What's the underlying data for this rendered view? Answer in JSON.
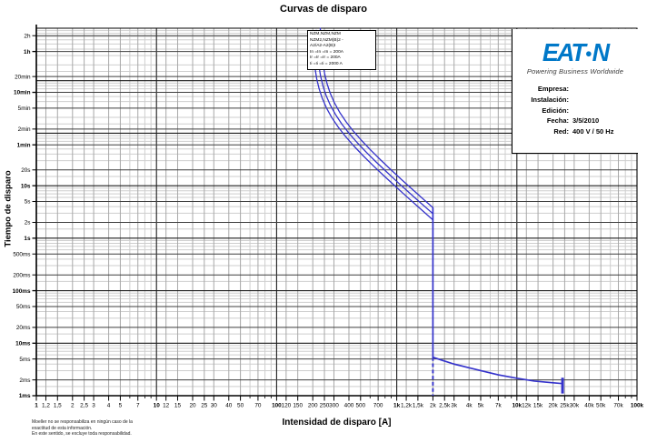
{
  "title": "Curvas de disparo",
  "branding": {
    "logo_left": "EAT",
    "logo_dot": "●",
    "logo_right": "N",
    "tagline": "Powering Business Worldwide",
    "logo_color": "#0078c8"
  },
  "legend_box": {
    "lines": [
      "NZM,NZM,NZM",
      "NZM2,NZM(B)2 -",
      "A2/A2-A2(B)I",
      "In =In =In = 200A",
      "Ir =Ir =Ir = 200A",
      "Ii =Ii =Ii = 2000 A"
    ]
  },
  "info_panel": {
    "rows": [
      {
        "label": "Empresa:",
        "value": ""
      },
      {
        "label": "Instalación:",
        "value": ""
      },
      {
        "label": "Edición:",
        "value": ""
      },
      {
        "label": "Fecha:",
        "value": "3/5/2010"
      },
      {
        "label": "Red:",
        "value": "400 V / 50 Hz"
      }
    ]
  },
  "footer": {
    "disclaimer_lines": [
      "Moeller no se responsabiliza en ningún caso de la",
      "exactitud de esta información.",
      "En este sentido, se excluye toda responsabilidad."
    ]
  },
  "axes": {
    "x_label": "Intensidad de disparo [A]",
    "y_label": "Tiempo de disparo",
    "x_minor_mantissas": [
      1,
      1.2,
      1.5,
      2,
      2.5,
      3,
      4,
      5,
      6,
      7,
      8,
      9
    ],
    "y_minor_mantissas": [
      1,
      1.5,
      2,
      3,
      4,
      5,
      6,
      7,
      8,
      9
    ],
    "x_ticks": [
      {
        "v": 1,
        "l": "1",
        "b": true
      },
      {
        "v": 1.2,
        "l": "1,2",
        "b": false
      },
      {
        "v": 1.5,
        "l": "1,5",
        "b": false
      },
      {
        "v": 2,
        "l": "2",
        "b": false
      },
      {
        "v": 2.5,
        "l": "2,5",
        "b": false
      },
      {
        "v": 3,
        "l": "3",
        "b": false
      },
      {
        "v": 4,
        "l": "4",
        "b": false
      },
      {
        "v": 5,
        "l": "5",
        "b": false
      },
      {
        "v": 7,
        "l": "7",
        "b": false
      },
      {
        "v": 10,
        "l": "10",
        "b": true
      },
      {
        "v": 12,
        "l": "12",
        "b": false
      },
      {
        "v": 15,
        "l": "15",
        "b": false
      },
      {
        "v": 20,
        "l": "20",
        "b": false
      },
      {
        "v": 25,
        "l": "25",
        "b": false
      },
      {
        "v": 30,
        "l": "30",
        "b": false
      },
      {
        "v": 40,
        "l": "40",
        "b": false
      },
      {
        "v": 50,
        "l": "50",
        "b": false
      },
      {
        "v": 70,
        "l": "70",
        "b": false
      },
      {
        "v": 100,
        "l": "100",
        "b": true
      },
      {
        "v": 120,
        "l": "120",
        "b": false
      },
      {
        "v": 150,
        "l": "150",
        "b": false
      },
      {
        "v": 200,
        "l": "200",
        "b": false
      },
      {
        "v": 250,
        "l": "250",
        "b": false
      },
      {
        "v": 300,
        "l": "300",
        "b": false
      },
      {
        "v": 400,
        "l": "400",
        "b": false
      },
      {
        "v": 500,
        "l": "500",
        "b": false
      },
      {
        "v": 700,
        "l": "700",
        "b": false
      },
      {
        "v": 1000,
        "l": "1k",
        "b": true
      },
      {
        "v": 1200,
        "l": "1,2k",
        "b": false
      },
      {
        "v": 1500,
        "l": "1,5k",
        "b": false
      },
      {
        "v": 2000,
        "l": "2k",
        "b": false
      },
      {
        "v": 2500,
        "l": "2,5k",
        "b": false
      },
      {
        "v": 3000,
        "l": "3k",
        "b": false
      },
      {
        "v": 4000,
        "l": "4k",
        "b": false
      },
      {
        "v": 5000,
        "l": "5k",
        "b": false
      },
      {
        "v": 7000,
        "l": "7k",
        "b": false
      },
      {
        "v": 10000,
        "l": "10k",
        "b": true
      },
      {
        "v": 12000,
        "l": "12k",
        "b": false
      },
      {
        "v": 15000,
        "l": "15k",
        "b": false
      },
      {
        "v": 20000,
        "l": "20k",
        "b": false
      },
      {
        "v": 25000,
        "l": "25k",
        "b": false
      },
      {
        "v": 30000,
        "l": "30k",
        "b": false
      },
      {
        "v": 40000,
        "l": "40k",
        "b": false
      },
      {
        "v": 50000,
        "l": "50k",
        "b": false
      },
      {
        "v": 70000,
        "l": "70k",
        "b": false
      },
      {
        "v": 100000,
        "l": "100k",
        "b": true
      }
    ],
    "y_ticks": [
      {
        "v": 7200,
        "l": "2h",
        "b": false
      },
      {
        "v": 3600,
        "l": "1h",
        "b": true
      },
      {
        "v": 1200,
        "l": "20min",
        "b": false
      },
      {
        "v": 600,
        "l": "10min",
        "b": true
      },
      {
        "v": 300,
        "l": "5min",
        "b": false
      },
      {
        "v": 120,
        "l": "2min",
        "b": false
      },
      {
        "v": 60,
        "l": "1min",
        "b": true
      },
      {
        "v": 20,
        "l": "20s",
        "b": false
      },
      {
        "v": 10,
        "l": "10s",
        "b": true
      },
      {
        "v": 5,
        "l": "5s",
        "b": false
      },
      {
        "v": 2,
        "l": "2s",
        "b": false
      },
      {
        "v": 1,
        "l": "1s",
        "b": true
      },
      {
        "v": 0.5,
        "l": "500ms",
        "b": false
      },
      {
        "v": 0.2,
        "l": "200ms",
        "b": false
      },
      {
        "v": 0.1,
        "l": "100ms",
        "b": true
      },
      {
        "v": 0.05,
        "l": "50ms",
        "b": false
      },
      {
        "v": 0.02,
        "l": "20ms",
        "b": false
      },
      {
        "v": 0.01,
        "l": "10ms",
        "b": true
      },
      {
        "v": 0.005,
        "l": "5ms",
        "b": false
      },
      {
        "v": 0.002,
        "l": "2ms",
        "b": false
      },
      {
        "v": 0.001,
        "l": "1ms",
        "b": true
      }
    ]
  },
  "chart_data": {
    "type": "line",
    "title": "Curvas de disparo",
    "xlabel": "Intensidad de disparo [A]",
    "ylabel": "Tiempo de disparo",
    "x_scale": "log",
    "y_scale": "log",
    "xlim": [
      1,
      100000
    ],
    "ylim_seconds": [
      0.001,
      10000
    ],
    "grid": "on",
    "curve_color": "#3533cb",
    "device_settings": {
      "In_A": 200,
      "Ir_A": 200,
      "Ii_A": 2000
    },
    "series": [
      {
        "name": "banda-termica-inferior",
        "points_A_s": [
          [
            199,
            7468
          ],
          [
            203,
            3177
          ],
          [
            208,
            1825
          ],
          [
            216,
            1072
          ],
          [
            226,
            698
          ],
          [
            240,
            461
          ],
          [
            260,
            303
          ],
          [
            288,
            198
          ],
          [
            325,
            132
          ],
          [
            372,
            88.4
          ],
          [
            437,
            57.9
          ],
          [
            520,
            38.1
          ],
          [
            632,
            24.5
          ],
          [
            771,
            15.9
          ],
          [
            948,
            10.3
          ],
          [
            1171,
            6.63
          ],
          [
            1450,
            4.28
          ],
          [
            1800,
            2.76
          ],
          [
            2000,
            2.23
          ]
        ]
      },
      {
        "name": "banda-termica-media",
        "points_A_s": [
          [
            214,
            9091
          ],
          [
            218,
            3840
          ],
          [
            224,
            2044
          ],
          [
            232,
            1244
          ],
          [
            243,
            797
          ],
          [
            258,
            525
          ],
          [
            280,
            342
          ],
          [
            310,
            225
          ],
          [
            350,
            148
          ],
          [
            400,
            100
          ],
          [
            470,
            65.6
          ],
          [
            560,
            43.0
          ],
          [
            680,
            27.7
          ],
          [
            830,
            18.0
          ],
          [
            1020,
            11.6
          ],
          [
            1260,
            7.5
          ],
          [
            1560,
            4.84
          ],
          [
            1900,
            3.25
          ],
          [
            2000,
            2.93
          ]
        ]
      },
      {
        "name": "banda-termica-superior",
        "points_A_s": [
          [
            231,
            10000
          ],
          [
            236,
            4062
          ],
          [
            242,
            2291
          ],
          [
            251,
            1368
          ],
          [
            263,
            877
          ],
          [
            279,
            583
          ],
          [
            302,
            384
          ],
          [
            335,
            250
          ],
          [
            378,
            166
          ],
          [
            433,
            111
          ],
          [
            508,
            73.2
          ],
          [
            605,
            48.0
          ],
          [
            735,
            30.9
          ],
          [
            897,
            20.0
          ],
          [
            1103,
            12.9
          ],
          [
            1362,
            8.36
          ],
          [
            1687,
            5.4
          ],
          [
            2000,
            3.82
          ]
        ]
      },
      {
        "name": "zona-instantanea",
        "points_A_s": [
          [
            2000,
            0.0054
          ],
          [
            2400,
            0.0047
          ],
          [
            3000,
            0.004
          ],
          [
            4000,
            0.0034
          ],
          [
            5000,
            0.003
          ],
          [
            7000,
            0.0025
          ],
          [
            10000,
            0.00215
          ],
          [
            14000,
            0.0019
          ],
          [
            20000,
            0.00176
          ],
          [
            24000,
            0.0017
          ]
        ]
      }
    ],
    "segments": {
      "corte_vertical": {
        "I_A": 2000,
        "t_from_s": 3.82,
        "t_to_s": 0.0054
      },
      "linea_discontinua": {
        "I_A": 2000,
        "t_from_s": 0.0054,
        "t_to_s": 0.001,
        "dashed": true
      },
      "marcador_final": {
        "I_A": 24000,
        "t_from_s": 0.0022,
        "t_to_s": 0.0011
      }
    }
  }
}
